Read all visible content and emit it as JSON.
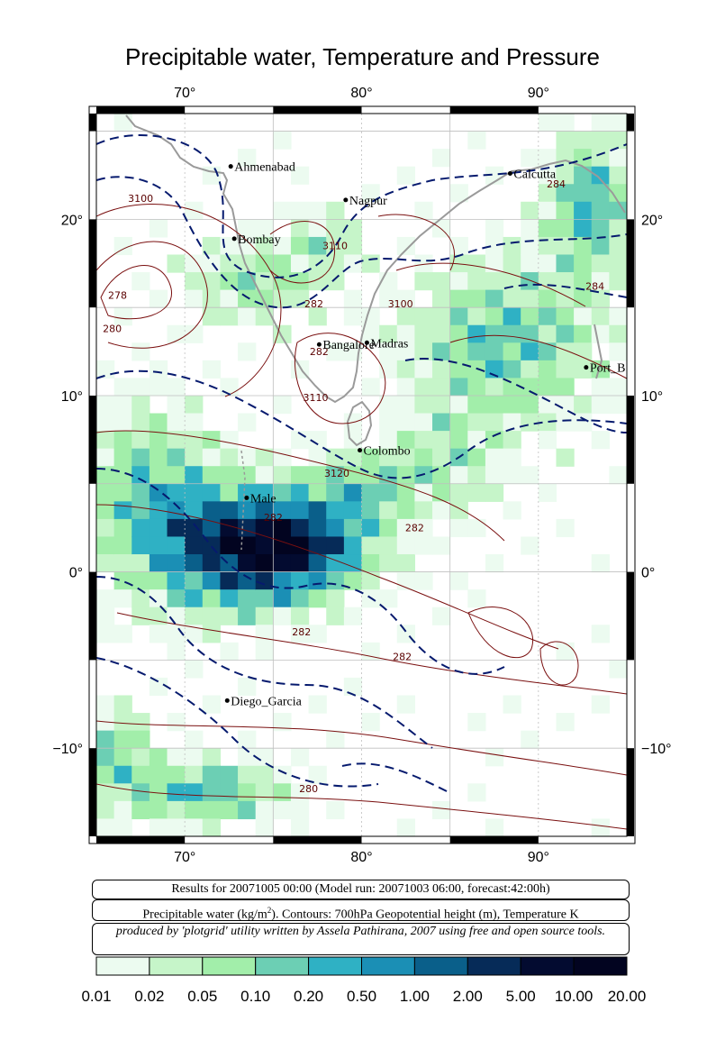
{
  "title": "Precipitable water, Temperature and Pressure",
  "map": {
    "lon_range": [
      65,
      95
    ],
    "lat_range": [
      -15,
      26
    ],
    "lon_ticks": [
      {
        "value": 70,
        "label": "70°"
      },
      {
        "value": 80,
        "label": "80°"
      },
      {
        "value": 90,
        "label": "90°"
      }
    ],
    "lat_ticks": [
      {
        "value": 20,
        "label": "20°"
      },
      {
        "value": 10,
        "label": "10°"
      },
      {
        "value": 0,
        "label": "0°"
      },
      {
        "value": -10,
        "label": "−10°"
      }
    ],
    "cities": [
      {
        "name": "Ahmenabad",
        "lon": 72.6,
        "lat": 23.0
      },
      {
        "name": "Nagpur",
        "lon": 79.1,
        "lat": 21.1
      },
      {
        "name": "Calcutta",
        "lon": 88.4,
        "lat": 22.6
      },
      {
        "name": "Bombay",
        "lon": 72.8,
        "lat": 18.9
      },
      {
        "name": "Bangalore",
        "lon": 77.6,
        "lat": 12.9
      },
      {
        "name": "Madras",
        "lon": 80.3,
        "lat": 13.0
      },
      {
        "name": "Port_B",
        "lon": 92.7,
        "lat": 11.6
      },
      {
        "name": "Colombo",
        "lon": 79.9,
        "lat": 6.9
      },
      {
        "name": "Male",
        "lon": 73.5,
        "lat": 4.2
      },
      {
        "name": "Diego_Garcia",
        "lon": 72.4,
        "lat": -7.3
      }
    ],
    "contour_labels": [
      {
        "text": "3100",
        "lon": 67.5,
        "lat": 21.0
      },
      {
        "text": "278",
        "lon": 66.2,
        "lat": 15.5
      },
      {
        "text": "280",
        "lon": 65.9,
        "lat": 13.6
      },
      {
        "text": "3110",
        "lon": 78.5,
        "lat": 18.3
      },
      {
        "text": "282",
        "lon": 77.3,
        "lat": 15.0
      },
      {
        "text": "3100",
        "lon": 82.2,
        "lat": 15.0
      },
      {
        "text": "282",
        "lon": 77.6,
        "lat": 12.3
      },
      {
        "text": "3110",
        "lon": 77.4,
        "lat": 9.7
      },
      {
        "text": "3120",
        "lon": 78.6,
        "lat": 5.4
      },
      {
        "text": "282",
        "lon": 75.0,
        "lat": 2.9
      },
      {
        "text": "282",
        "lon": 83.0,
        "lat": 2.3
      },
      {
        "text": "282",
        "lon": 76.6,
        "lat": -3.6
      },
      {
        "text": "282",
        "lon": 82.3,
        "lat": -5.0
      },
      {
        "text": "280",
        "lon": 77.0,
        "lat": -12.5
      },
      {
        "text": "284",
        "lon": 91.0,
        "lat": 21.8
      },
      {
        "text": "284",
        "lon": 93.2,
        "lat": 16.0
      }
    ]
  },
  "legend": {
    "results": "Results for 20071005 00:00 (Model run: 20071003 06:00, forecast:42:00h)",
    "units_prefix": "Precipitable water (kg/m",
    "units_sup": "2",
    "units_suffix": ").  Contours: 700hPa Geopotential height (m), Temperature K",
    "credit": "produced by 'plotgrid' utility written by Assela Pathirana, 2007 using free and open source tools."
  },
  "colorbar": {
    "colors": [
      "#ecfbf0",
      "#c6f5c9",
      "#a2eeaa",
      "#6ccfb4",
      "#2fb1c4",
      "#1b8fb5",
      "#0a5f8a",
      "#062b58",
      "#030b30",
      "#020420",
      "#000000"
    ],
    "labels": [
      "0.01",
      "0.02",
      "0.05",
      "0.10",
      "0.20",
      "0.50",
      "1.00",
      "2.00",
      "5.00",
      "10.00",
      "20.00"
    ]
  }
}
